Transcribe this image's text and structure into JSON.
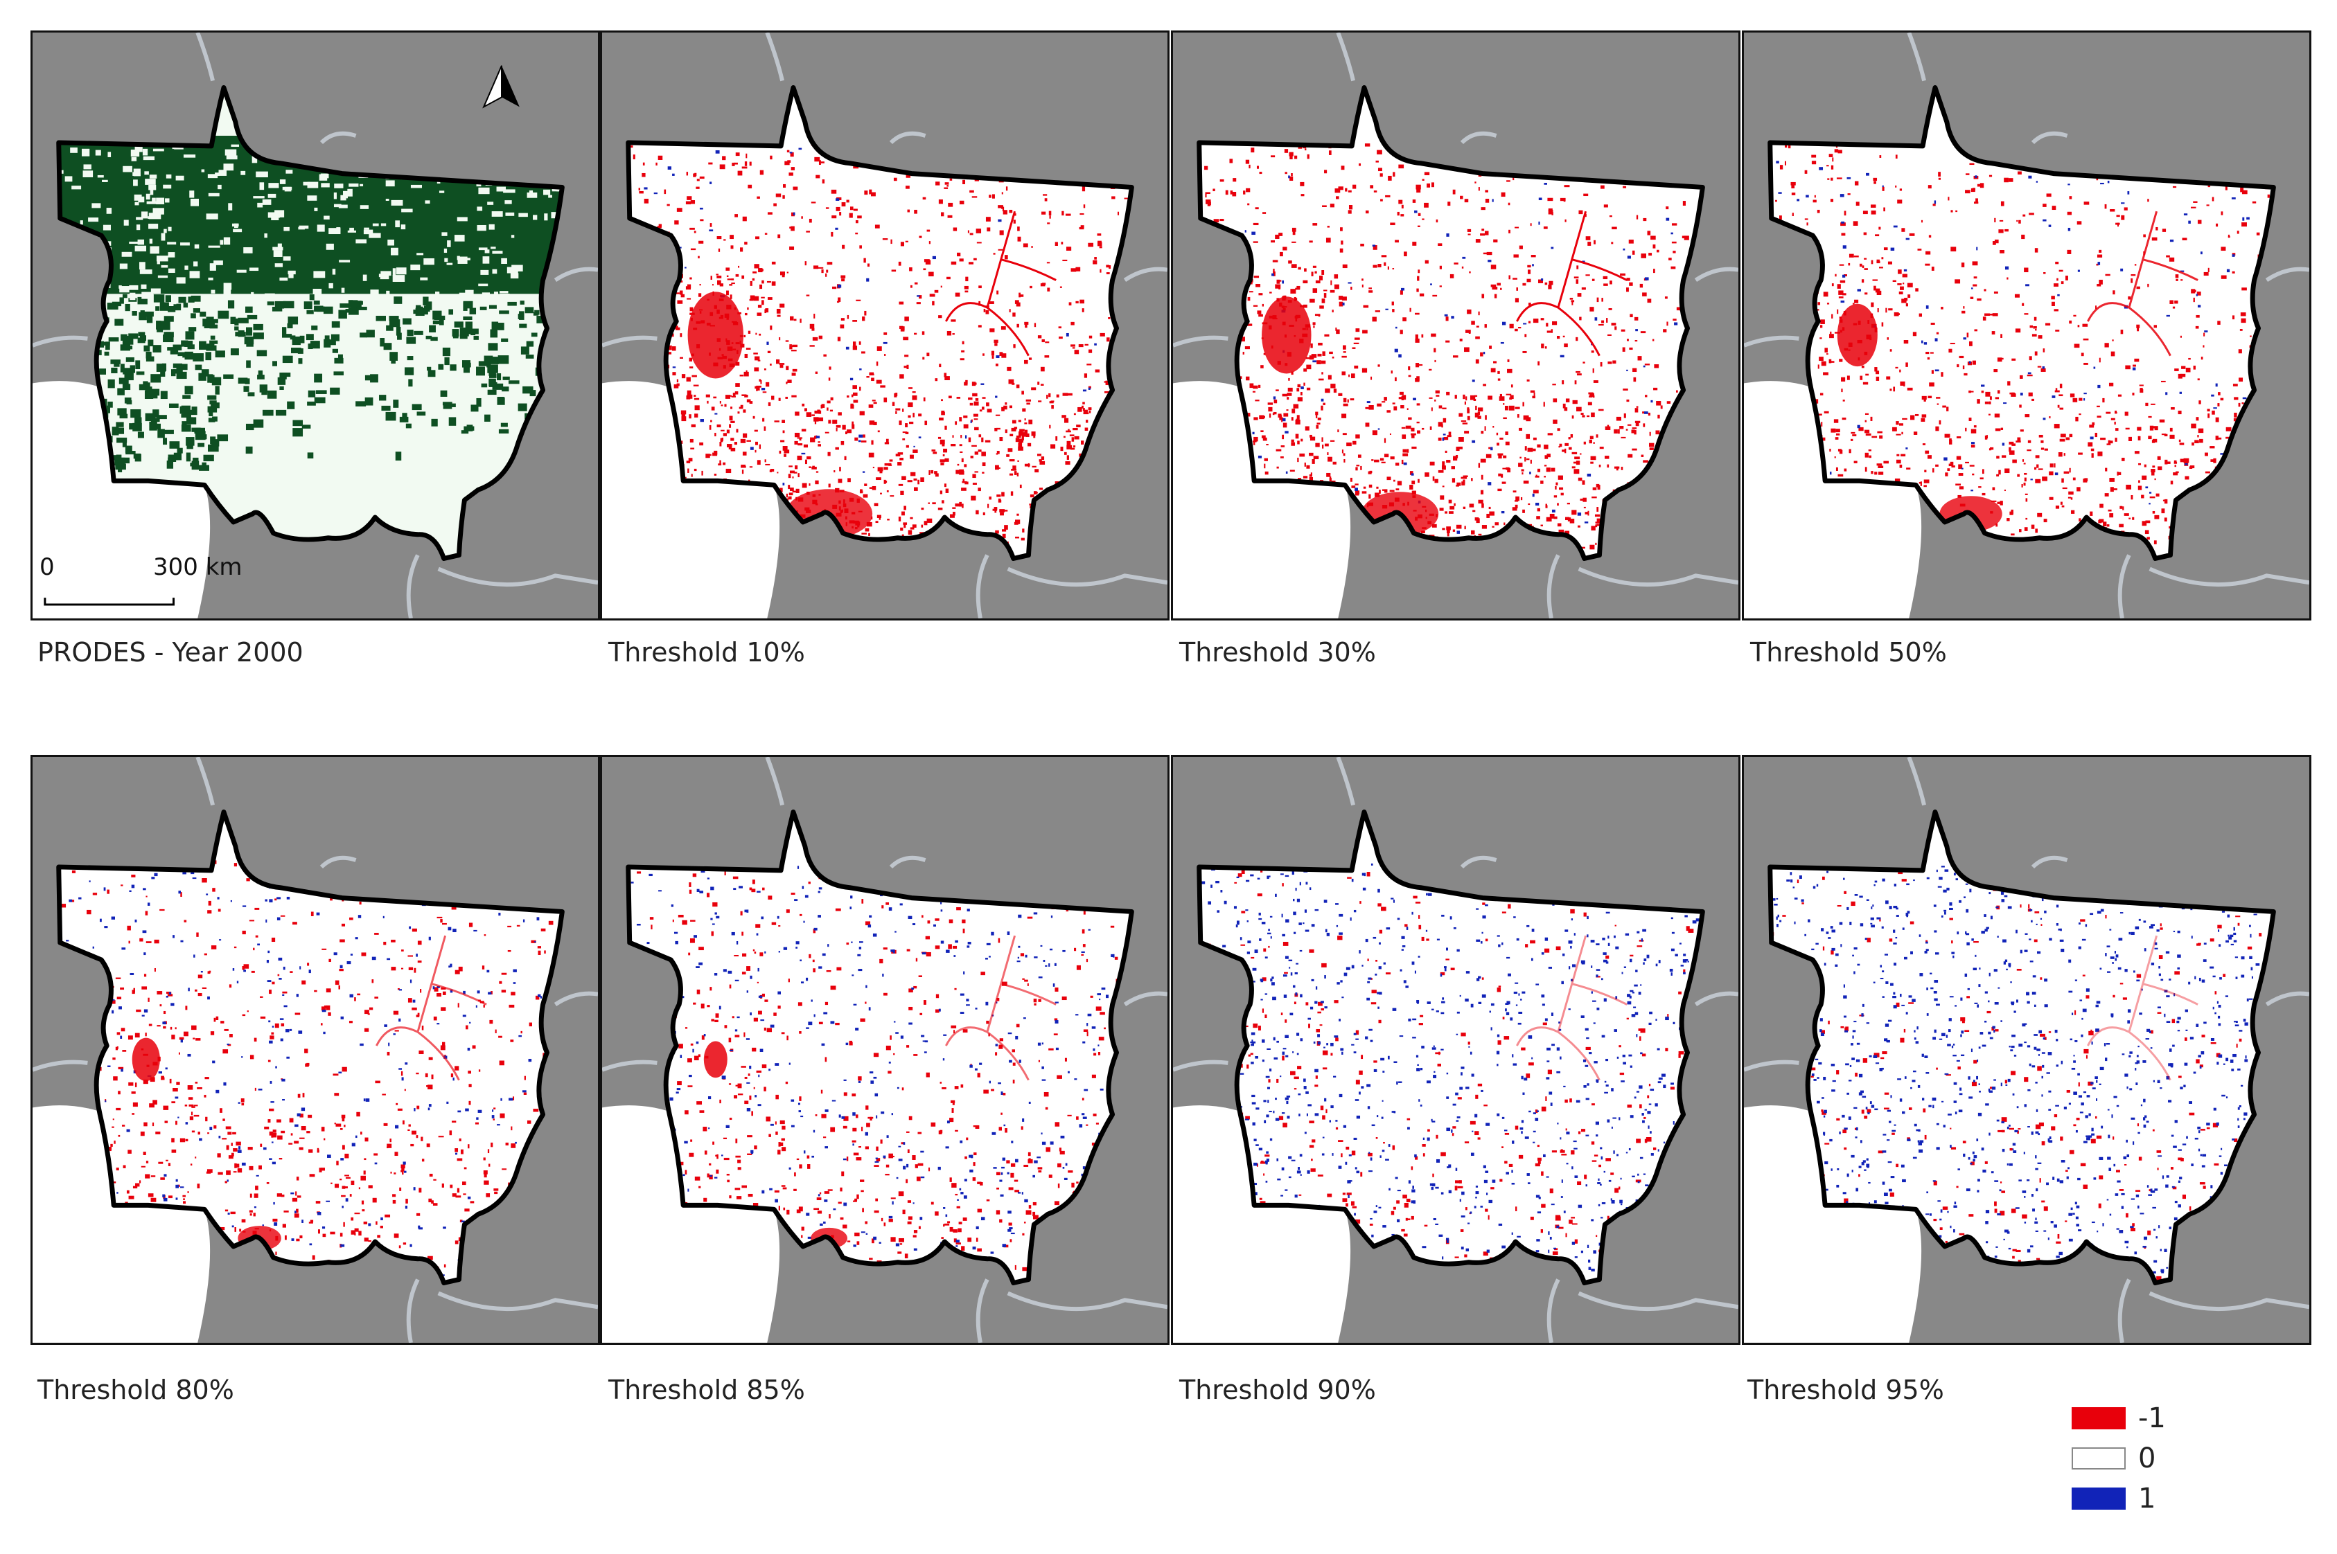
{
  "colors": {
    "background": "#888888",
    "border": "#111111",
    "forest": "#0e4f22",
    "nonforest": "#f2faf2",
    "negative": "#e8000b",
    "zero": "#ffffff",
    "positive": "#1123b8",
    "boundary": "#bfc5cc"
  },
  "panels": [
    {
      "caption": "PRODES - Year 2000",
      "type": "prodes",
      "red_fraction": 0,
      "blue_fraction": 0
    },
    {
      "caption": "Threshold 10%",
      "type": "difference",
      "red_fraction": 0.9,
      "blue_fraction": 0.03
    },
    {
      "caption": "Threshold 30%",
      "type": "difference",
      "red_fraction": 0.8,
      "blue_fraction": 0.05
    },
    {
      "caption": "Threshold 50%",
      "type": "difference",
      "red_fraction": 0.65,
      "blue_fraction": 0.06
    },
    {
      "caption": "Threshold 80%",
      "type": "difference",
      "red_fraction": 0.45,
      "blue_fraction": 0.15
    },
    {
      "caption": "Threshold 85%",
      "type": "difference",
      "red_fraction": 0.38,
      "blue_fraction": 0.22
    },
    {
      "caption": "Threshold 90%",
      "type": "difference",
      "red_fraction": 0.25,
      "blue_fraction": 0.45
    },
    {
      "caption": "Threshold 95%",
      "type": "difference",
      "red_fraction": 0.18,
      "blue_fraction": 0.55
    }
  ],
  "scale_bar": {
    "start": "0",
    "end": "300 km"
  },
  "north_arrow": "north-arrow-icon",
  "legend": [
    {
      "label": "-1",
      "color": "#e8000b"
    },
    {
      "label": "0",
      "color": "#ffffff"
    },
    {
      "label": "1",
      "color": "#1123b8"
    }
  ]
}
